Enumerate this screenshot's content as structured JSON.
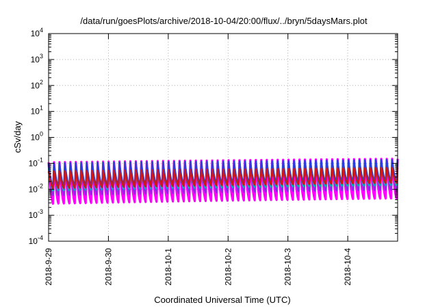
{
  "chart_data": {
    "type": "area",
    "title": "/data/run/goesPlots/archive/2018-10-04/20:00/flux/../bryn/5daysMars.plot",
    "xlabel": "Coordinated Universal Time (UTC)",
    "ylabel": "cSv/day",
    "yscale": "log",
    "ylim": [
      0.0001,
      10000
    ],
    "xlim": [
      "2018-09-29 00:00",
      "2018-10-04 20:00"
    ],
    "x_ticks": [
      "2018-9-29",
      "2018-9-30",
      "2018-10-1",
      "2018-10-2",
      "2018-10-3",
      "2018-10-4"
    ],
    "y_ticks": [
      {
        "base": "10",
        "exp": "-4"
      },
      {
        "base": "10",
        "exp": "-3"
      },
      {
        "base": "10",
        "exp": "-2"
      },
      {
        "base": "10",
        "exp": "-1"
      },
      {
        "base": "10",
        "exp": "0"
      },
      {
        "base": "10",
        "exp": "1"
      },
      {
        "base": "10",
        "exp": "2"
      },
      {
        "base": "10",
        "exp": "3"
      },
      {
        "base": "10",
        "exp": "4"
      }
    ],
    "grid": true,
    "legend": "none",
    "oscillation": {
      "cycles": 64,
      "peak_early": 0.11,
      "peak_late": 0.15,
      "trough_early": 0.0028,
      "trough_late": 0.0045
    },
    "series": [
      {
        "color": "#ff00ff",
        "peak_ratio": 1.0,
        "trough_ratio": 1.0
      },
      {
        "color": "#8a2be2",
        "peak_ratio": 0.78,
        "trough_ratio": 2.1
      },
      {
        "color": "#00b4b4",
        "peak_ratio": 0.62,
        "trough_ratio": 3.2
      },
      {
        "color": "#2a3fd8",
        "peak_ratio": 0.92,
        "trough_ratio": 4.6
      },
      {
        "color": "#d01818",
        "peak_ratio": 0.45,
        "trough_ratio": 3.9
      }
    ]
  }
}
